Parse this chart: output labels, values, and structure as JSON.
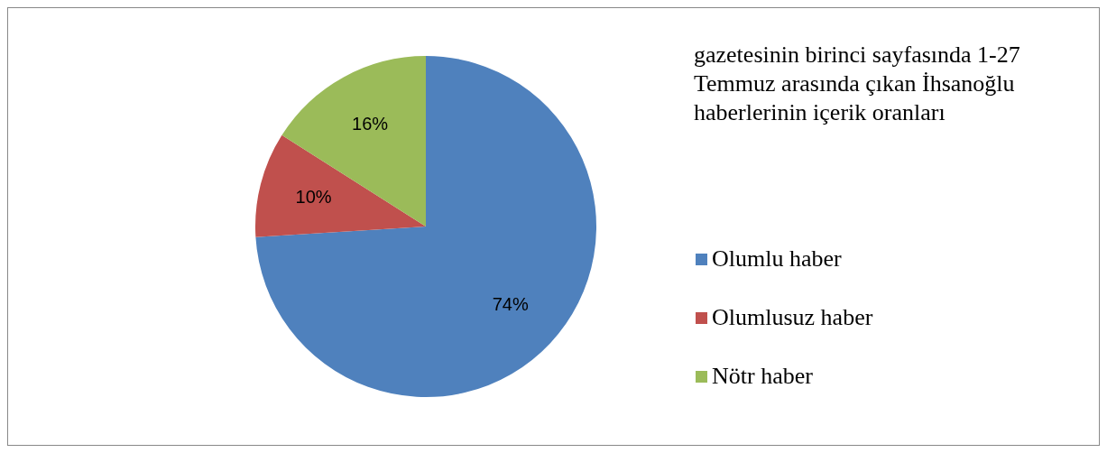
{
  "chart_data": {
    "type": "pie",
    "title": "gazetesinin birinci sayfasında 1-27 Temmuz arasında çıkan İhsanoğlu haberlerinin içerik oranları",
    "categories": [
      "Olumlu haber",
      "Olumlusuz haber",
      "Nötr haber"
    ],
    "values": [
      74,
      10,
      16
    ],
    "value_labels": [
      "74%",
      "10%",
      "16%"
    ],
    "colors": [
      "#4f81bd",
      "#c0504d",
      "#9bbb59"
    ],
    "legend": "right"
  }
}
